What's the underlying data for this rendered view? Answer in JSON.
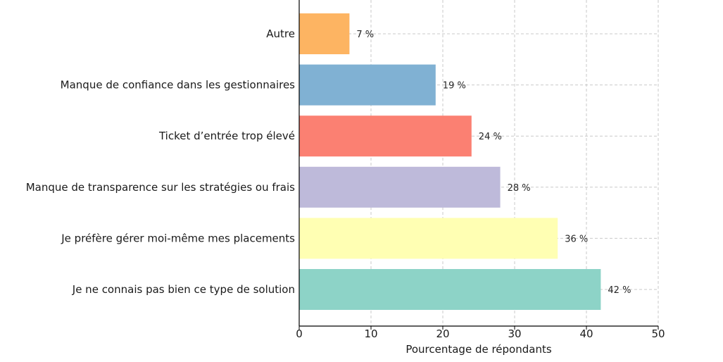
{
  "chart_data": {
    "type": "bar",
    "orientation": "horizontal",
    "categories": [
      "Je ne connais pas bien ce type de solution",
      "Je préfère gérer moi-même mes placements",
      "Manque de transparence sur les stratégies ou frais",
      "Ticket d’entrée trop élevé",
      "Manque de confiance dans les gestionnaires",
      "Autre"
    ],
    "values": [
      42,
      36,
      28,
      24,
      19,
      7
    ],
    "value_labels": [
      "42 %",
      "36 %",
      "28 %",
      "24 %",
      "19 %",
      "7 %"
    ],
    "colors": [
      "#8dd3c7",
      "#ffffb3",
      "#bebada",
      "#fb8072",
      "#80b1d3",
      "#fdb462"
    ],
    "xlabel": "Pourcentage de répondants",
    "xlim": [
      0,
      50
    ],
    "xticks": [
      0,
      10,
      20,
      30,
      40,
      50
    ],
    "xtick_labels": [
      "0",
      "10",
      "20",
      "30",
      "40",
      "50"
    ],
    "grid": true
  }
}
